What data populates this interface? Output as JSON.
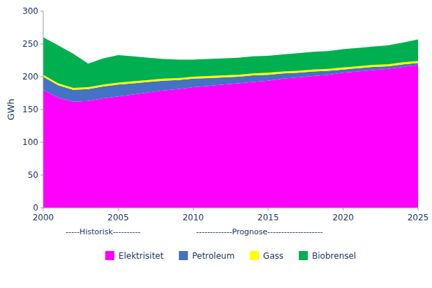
{
  "chart_data": {
    "type": "area",
    "stacked": true,
    "x": [
      2000,
      2001,
      2002,
      2003,
      2004,
      2005,
      2006,
      2007,
      2008,
      2009,
      2010,
      2011,
      2012,
      2013,
      2014,
      2015,
      2016,
      2017,
      2018,
      2019,
      2020,
      2021,
      2022,
      2023,
      2024,
      2025
    ],
    "series": [
      {
        "name": "Elektrisitet",
        "color": "#ff00ff",
        "values": [
          180,
          168,
          162,
          163,
          167,
          170,
          173,
          176,
          179,
          181,
          184,
          186,
          188,
          190,
          192,
          194,
          197,
          199,
          201,
          203,
          206,
          208,
          210,
          212,
          215,
          218
        ]
      },
      {
        "name": "Petroleum",
        "color": "#4472c4",
        "values": [
          20,
          19,
          18,
          18,
          18,
          18,
          17,
          16,
          15,
          14,
          13,
          12,
          11,
          10,
          10,
          9,
          8,
          7,
          7,
          6,
          5,
          5,
          5,
          4,
          4,
          3
        ]
      },
      {
        "name": "Gass",
        "color": "#ffff00",
        "values": [
          3,
          3,
          3,
          3,
          3,
          3,
          3,
          3,
          3,
          3,
          3,
          3,
          3,
          3,
          3,
          3,
          3,
          3,
          3,
          3,
          3,
          3,
          3,
          3,
          3,
          3
        ]
      },
      {
        "name": "Biobrensel",
        "color": "#00b050",
        "values": [
          57,
          58,
          52,
          36,
          40,
          42,
          38,
          34,
          30,
          28,
          26,
          26,
          26,
          26,
          26,
          26,
          26,
          27,
          27,
          27,
          28,
          28,
          28,
          29,
          30,
          33
        ]
      }
    ],
    "ylabel": "GWh",
    "xlim": [
      2000,
      2025
    ],
    "ylim": [
      0,
      300
    ],
    "xticks": [
      2000,
      2005,
      2010,
      2015,
      2020,
      2025
    ],
    "yticks": [
      0,
      50,
      100,
      150,
      200,
      250,
      300
    ],
    "annotations": [
      {
        "text": "-----Historisk----------",
        "x": 2001.5
      },
      {
        "text": "-------------Prognose--------------------",
        "x": 2010.2
      }
    ],
    "legend": "bottom",
    "grid": false
  }
}
